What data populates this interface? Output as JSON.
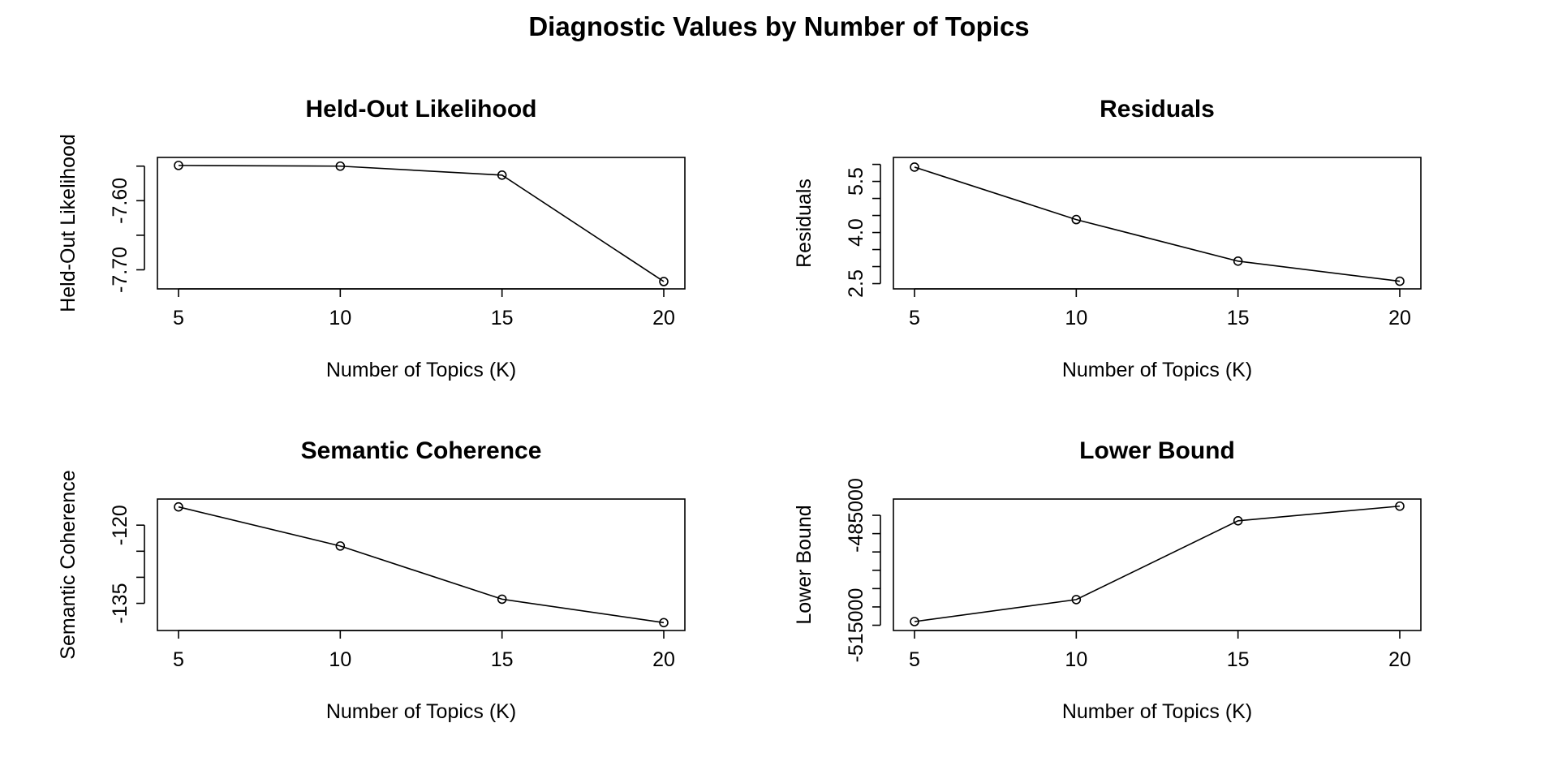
{
  "figure": {
    "title": "Diagnostic Values by Number of Topics"
  },
  "chart_data": [
    {
      "type": "line",
      "title": "Held-Out Likelihood",
      "xlabel": "Number of Topics (K)",
      "ylabel": "Held-Out Likelihood",
      "x": [
        5,
        10,
        15,
        20
      ],
      "y": [
        -7.549,
        -7.55,
        -7.563,
        -7.717
      ],
      "xlim": [
        5,
        20
      ],
      "ylim": [
        -7.72,
        -7.545
      ],
      "xticks": [
        5,
        10,
        15,
        20
      ],
      "xtick_labels": [
        "5",
        "10",
        "15",
        "20"
      ],
      "yticks": [
        -7.7,
        -7.65,
        -7.6,
        -7.55
      ],
      "ytick_labels": [
        "-7.70",
        "",
        "-7.60",
        ""
      ],
      "grid": false,
      "marker": "open-circle"
    },
    {
      "type": "line",
      "title": "Residuals",
      "xlabel": "Number of Topics (K)",
      "ylabel": "Residuals",
      "x": [
        5,
        10,
        15,
        20
      ],
      "y": [
        5.92,
        4.38,
        3.16,
        2.57
      ],
      "xlim": [
        5,
        20
      ],
      "ylim": [
        2.5,
        6.05
      ],
      "xticks": [
        5,
        10,
        15,
        20
      ],
      "xtick_labels": [
        "5",
        "10",
        "15",
        "20"
      ],
      "yticks": [
        2.5,
        3.0,
        3.5,
        4.0,
        4.5,
        5.0,
        5.5,
        6.0
      ],
      "ytick_labels": [
        "2.5",
        "",
        "",
        "4.0",
        "",
        "",
        "5.5",
        ""
      ],
      "grid": false,
      "marker": "open-circle"
    },
    {
      "type": "line",
      "title": "Semantic Coherence",
      "xlabel": "Number of Topics (K)",
      "ylabel": "Semantic Coherence",
      "x": [
        5,
        10,
        15,
        20
      ],
      "y": [
        -116.5,
        -124.0,
        -134.2,
        -138.7
      ],
      "xlim": [
        5,
        20
      ],
      "ylim": [
        -139.2,
        -116.0
      ],
      "xticks": [
        5,
        10,
        15,
        20
      ],
      "xtick_labels": [
        "5",
        "10",
        "15",
        "20"
      ],
      "yticks": [
        -135,
        -130,
        -125,
        -120
      ],
      "ytick_labels": [
        "-135",
        "",
        "",
        "-120"
      ],
      "grid": false,
      "marker": "open-circle"
    },
    {
      "type": "line",
      "title": "Lower Bound",
      "xlabel": "Number of Topics (K)",
      "ylabel": "Lower Bound",
      "x": [
        5,
        10,
        15,
        20
      ],
      "y": [
        -514000,
        -508000,
        -486500,
        -482500
      ],
      "xlim": [
        5,
        20
      ],
      "ylim": [
        -515000,
        -482000
      ],
      "xticks": [
        5,
        10,
        15,
        20
      ],
      "xtick_labels": [
        "5",
        "10",
        "15",
        "20"
      ],
      "yticks": [
        -515000,
        -510000,
        -505000,
        -500000,
        -495000,
        -490000,
        -485000
      ],
      "ytick_labels": [
        "-515000",
        "",
        "",
        "",
        "",
        "",
        "-485000"
      ],
      "grid": false,
      "marker": "open-circle"
    }
  ]
}
